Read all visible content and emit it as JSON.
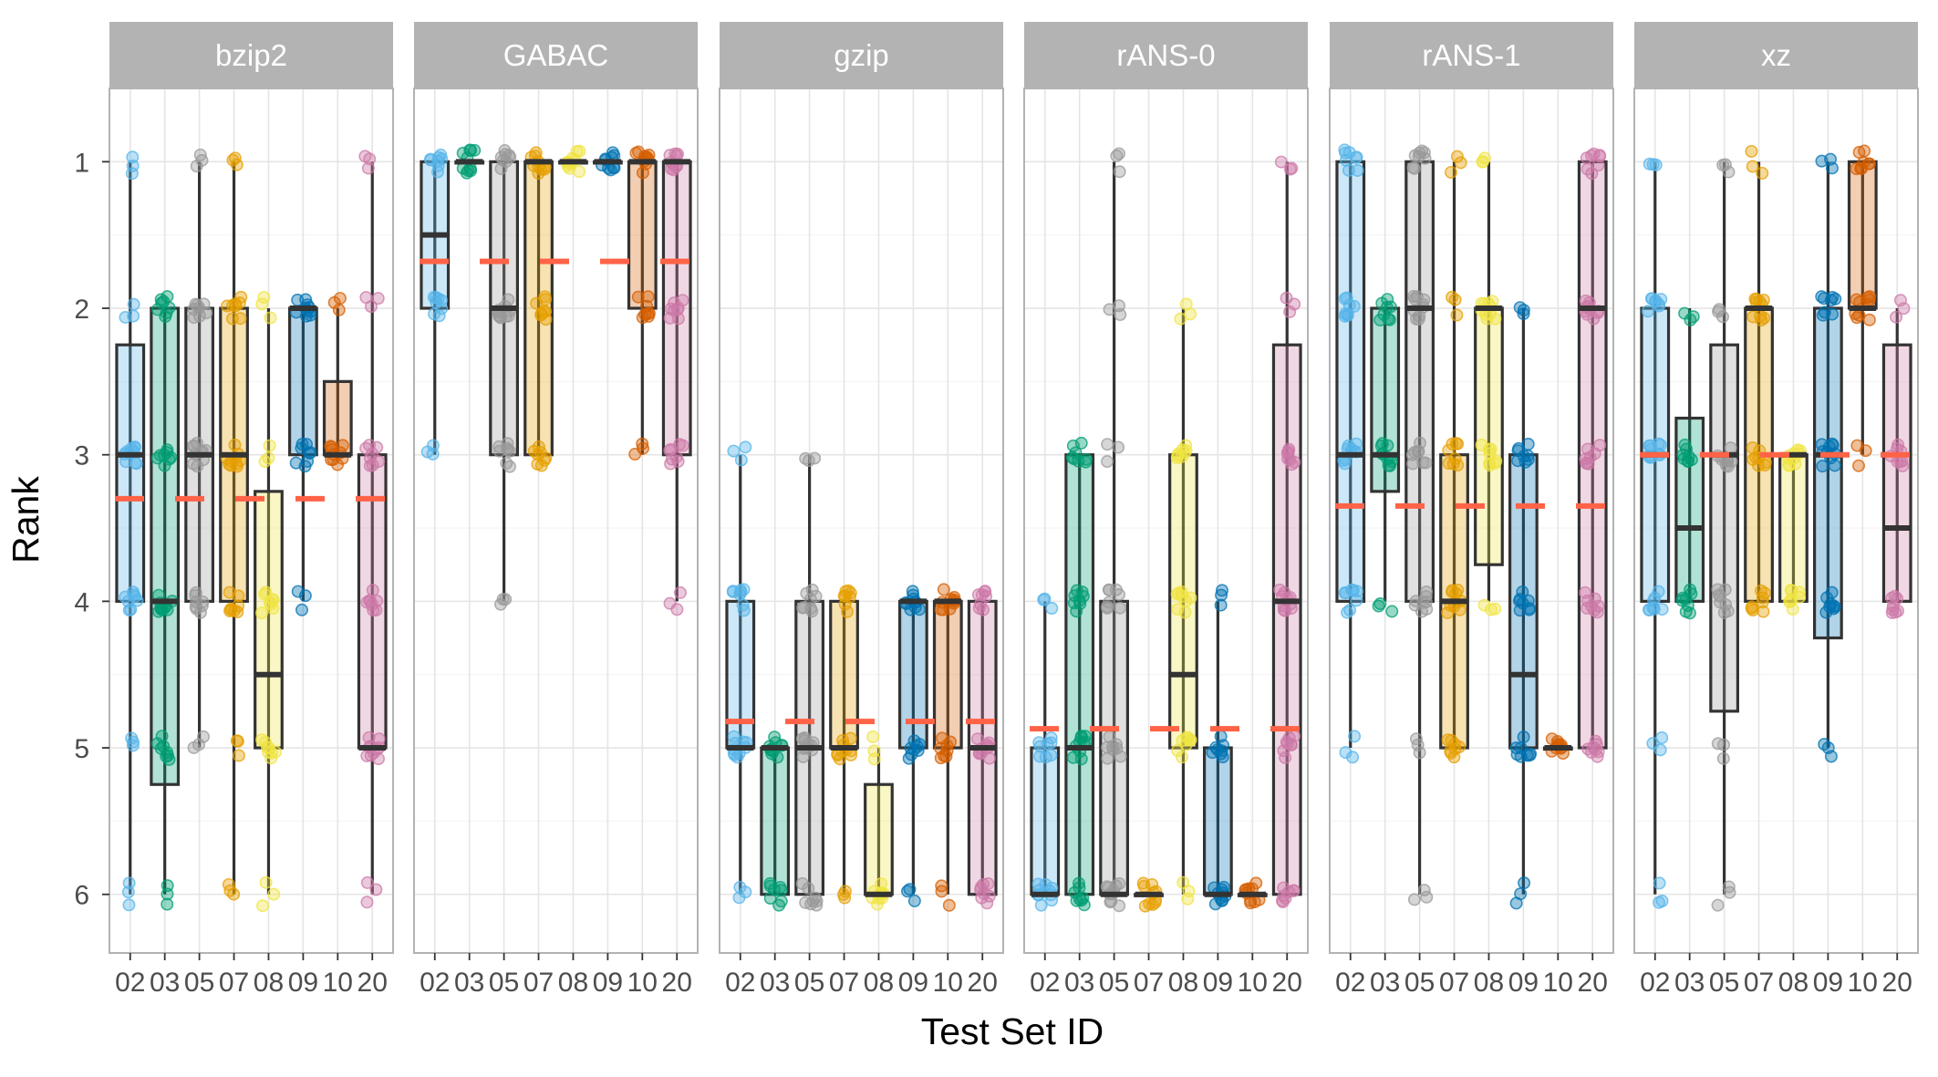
{
  "chart_data": {
    "type": "boxplot",
    "title": "",
    "xlabel": "Test Set ID",
    "ylabel": "Rank",
    "y_reversed": true,
    "ylim": [
      0.5,
      6.4
    ],
    "yticks": [
      1,
      2,
      3,
      4,
      5,
      6
    ],
    "x_tick_labels": [
      "02",
      "03",
      "05",
      "07",
      "08",
      "09",
      "10",
      "20"
    ],
    "grid": true,
    "legend": "none",
    "colors": {
      "02": "#56B4E9",
      "03": "#009E73",
      "05": "#999999",
      "07": "#E69F00",
      "08": "#F0E442",
      "09": "#0072B2",
      "10": "#D55E00",
      "20": "#CC79A7",
      "mean_line": "#FF6347",
      "strip_bg": "#B3B3B3",
      "panel_border": "#B3B3B3",
      "grid": "#E5E5E5",
      "box_outline": "#333333"
    },
    "panels": [
      {
        "name": "bzip2",
        "mean": 3.3,
        "boxes": [
          {
            "id": "02",
            "min": 1,
            "q1": 2.25,
            "median": 3,
            "q3": 4,
            "max": 6
          },
          {
            "id": "03",
            "min": 2,
            "q1": 2,
            "median": 4,
            "q3": 5.25,
            "max": 6
          },
          {
            "id": "05",
            "min": 1,
            "q1": 2,
            "median": 3,
            "q3": 4,
            "max": 5
          },
          {
            "id": "07",
            "min": 1,
            "q1": 2,
            "median": 3,
            "q3": 4,
            "max": 6
          },
          {
            "id": "08",
            "min": 2,
            "q1": 3.25,
            "median": 4.5,
            "q3": 5,
            "max": 6
          },
          {
            "id": "09",
            "min": 2,
            "q1": 2,
            "median": 2,
            "q3": 3,
            "max": 4
          },
          {
            "id": "10",
            "min": 2,
            "q1": 2.5,
            "median": 3,
            "q3": 3,
            "max": 3
          },
          {
            "id": "20",
            "min": 1,
            "q1": 3,
            "median": 5,
            "q3": 5,
            "max": 6
          }
        ]
      },
      {
        "name": "GABAC",
        "mean": 1.68,
        "boxes": [
          {
            "id": "02",
            "min": 1,
            "q1": 1,
            "median": 1.5,
            "q3": 2,
            "max": 3
          },
          {
            "id": "03",
            "min": 1,
            "q1": 1,
            "median": 1,
            "q3": 1,
            "max": 1
          },
          {
            "id": "05",
            "min": 1,
            "q1": 1,
            "median": 2,
            "q3": 3,
            "max": 4
          },
          {
            "id": "07",
            "min": 1,
            "q1": 1,
            "median": 1,
            "q3": 3,
            "max": 3
          },
          {
            "id": "08",
            "min": 1,
            "q1": 1,
            "median": 1,
            "q3": 1,
            "max": 1
          },
          {
            "id": "09",
            "min": 1,
            "q1": 1,
            "median": 1,
            "q3": 1,
            "max": 1
          },
          {
            "id": "10",
            "min": 1,
            "q1": 1,
            "median": 1,
            "q3": 2,
            "max": 3
          },
          {
            "id": "20",
            "min": 1,
            "q1": 1,
            "median": 1,
            "q3": 3,
            "max": 4
          }
        ]
      },
      {
        "name": "gzip",
        "mean": 4.82,
        "boxes": [
          {
            "id": "02",
            "min": 3,
            "q1": 4,
            "median": 5,
            "q3": 5,
            "max": 6
          },
          {
            "id": "03",
            "min": 5,
            "q1": 5,
            "median": 5,
            "q3": 6,
            "max": 6
          },
          {
            "id": "05",
            "min": 3,
            "q1": 4,
            "median": 5,
            "q3": 6,
            "max": 6
          },
          {
            "id": "07",
            "min": 4,
            "q1": 4,
            "median": 5,
            "q3": 5,
            "max": 6
          },
          {
            "id": "08",
            "min": 5,
            "q1": 5.25,
            "median": 6,
            "q3": 6,
            "max": 6
          },
          {
            "id": "09",
            "min": 4,
            "q1": 4,
            "median": 4,
            "q3": 5,
            "max": 6
          },
          {
            "id": "10",
            "min": 4,
            "q1": 4,
            "median": 4,
            "q3": 5,
            "max": 6
          },
          {
            "id": "20",
            "min": 4,
            "q1": 4,
            "median": 5,
            "q3": 6,
            "max": 6
          }
        ]
      },
      {
        "name": "rANS-0",
        "mean": 4.87,
        "boxes": [
          {
            "id": "02",
            "min": 4,
            "q1": 5,
            "median": 6,
            "q3": 6,
            "max": 6
          },
          {
            "id": "03",
            "min": 3,
            "q1": 3,
            "median": 5,
            "q3": 6,
            "max": 6
          },
          {
            "id": "05",
            "min": 1,
            "q1": 4,
            "median": 6,
            "q3": 6,
            "max": 6
          },
          {
            "id": "07",
            "min": 6,
            "q1": 6,
            "median": 6,
            "q3": 6,
            "max": 6
          },
          {
            "id": "08",
            "min": 2,
            "q1": 3,
            "median": 4.5,
            "q3": 5,
            "max": 6
          },
          {
            "id": "09",
            "min": 4,
            "q1": 5,
            "median": 6,
            "q3": 6,
            "max": 6
          },
          {
            "id": "10",
            "min": 6,
            "q1": 6,
            "median": 6,
            "q3": 6,
            "max": 6
          },
          {
            "id": "20",
            "min": 1,
            "q1": 2.25,
            "median": 4,
            "q3": 6,
            "max": 6
          }
        ]
      },
      {
        "name": "rANS-1",
        "mean": 3.35,
        "boxes": [
          {
            "id": "02",
            "min": 1,
            "q1": 1,
            "median": 3,
            "q3": 4,
            "max": 5
          },
          {
            "id": "03",
            "min": 2,
            "q1": 2,
            "median": 3,
            "q3": 3.25,
            "max": 4
          },
          {
            "id": "05",
            "min": 1,
            "q1": 1,
            "median": 2,
            "q3": 4,
            "max": 6
          },
          {
            "id": "07",
            "min": 1,
            "q1": 3,
            "median": 4,
            "q3": 5,
            "max": 5
          },
          {
            "id": "08",
            "min": 1,
            "q1": 2,
            "median": 2,
            "q3": 3.75,
            "max": 4
          },
          {
            "id": "09",
            "min": 2,
            "q1": 3,
            "median": 4.5,
            "q3": 5,
            "max": 6
          },
          {
            "id": "10",
            "min": 5,
            "q1": 5,
            "median": 5,
            "q3": 5,
            "max": 5
          },
          {
            "id": "20",
            "min": 1,
            "q1": 1,
            "median": 2,
            "q3": 5,
            "max": 5
          }
        ]
      },
      {
        "name": "xz",
        "mean": 3.0,
        "boxes": [
          {
            "id": "02",
            "min": 1,
            "q1": 2,
            "median": 3,
            "q3": 4,
            "max": 6
          },
          {
            "id": "03",
            "min": 2,
            "q1": 2.75,
            "median": 3.5,
            "q3": 4,
            "max": 4
          },
          {
            "id": "05",
            "min": 1,
            "q1": 2.25,
            "median": 3,
            "q3": 4.75,
            "max": 6
          },
          {
            "id": "07",
            "min": 1,
            "q1": 2,
            "median": 2,
            "q3": 4,
            "max": 4
          },
          {
            "id": "08",
            "min": 3,
            "q1": 3,
            "median": 3,
            "q3": 4,
            "max": 4
          },
          {
            "id": "09",
            "min": 1,
            "q1": 2,
            "median": 3,
            "q3": 4.25,
            "max": 5
          },
          {
            "id": "10",
            "min": 1,
            "q1": 1,
            "median": 2,
            "q3": 2,
            "max": 3
          },
          {
            "id": "20",
            "min": 2,
            "q1": 2.25,
            "median": 3.5,
            "q3": 4,
            "max": 4
          }
        ]
      }
    ]
  }
}
